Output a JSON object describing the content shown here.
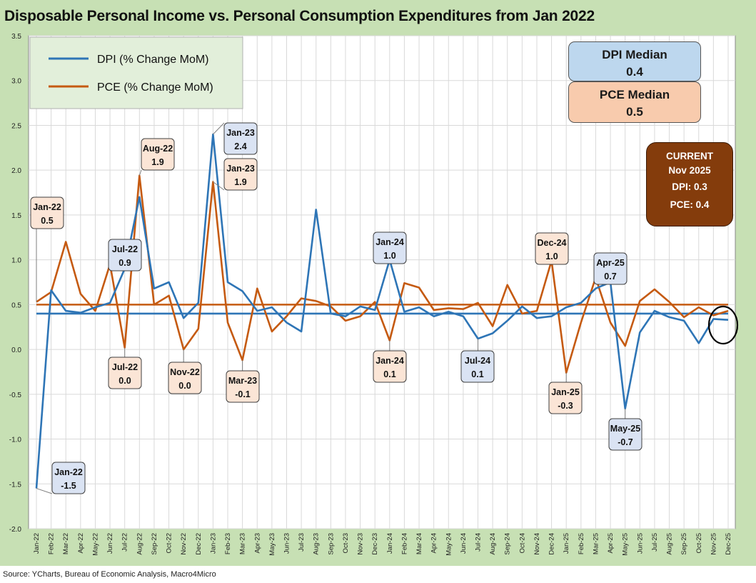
{
  "title": "Disposable Personal Income vs. Personal Consumption Expenditures from Jan 2022",
  "source": "Source: YCharts, Bureau of Economic Analysis, Macro4Micro",
  "median_boxes": {
    "dpi_label": "DPI Median",
    "dpi_value": "0.4",
    "pce_label": "PCE Median",
    "pce_value": "0.5"
  },
  "current": {
    "line1": "CURRENT",
    "line2": "Nov 2025",
    "dpi": "DPI:  0.3",
    "pce": "PCE:  0.4"
  },
  "colors": {
    "dpi": "#2e75b6",
    "pce": "#c55a11",
    "dpi_box": "#dae3f3",
    "pce_box": "#fbe5d6",
    "frame": "#c7e0b4"
  },
  "chart_data": {
    "type": "line",
    "title": "Disposable Personal Income vs. Personal Consumption Expenditures from Jan 2022",
    "ylim": [
      -2.0,
      3.5
    ],
    "yticks": [
      "3.5",
      "3.0",
      "2.5",
      "2.0",
      "1.5",
      "1.0",
      "0.5",
      "0.0",
      "-0.5",
      "-1.0",
      "-1.5",
      "-2.0"
    ],
    "ytick_values": [
      3.5,
      3.0,
      2.5,
      2.0,
      1.5,
      1.0,
      0.5,
      0.0,
      -0.5,
      -1.0,
      -1.5,
      -2.0
    ],
    "grid": true,
    "legend": "top-left",
    "x": [
      "Jan-22",
      "Feb-22",
      "Mar-22",
      "Apr-22",
      "May-22",
      "Jun-22",
      "Jul-22",
      "Aug-22",
      "Sep-22",
      "Oct-22",
      "Nov-22",
      "Dec-22",
      "Jan-23",
      "Feb-23",
      "Mar-23",
      "Apr-23",
      "May-23",
      "Jun-23",
      "Jul-23",
      "Aug-23",
      "Sep-23",
      "Oct-23",
      "Nov-23",
      "Dec-23",
      "Jan-24",
      "Feb-24",
      "Mar-24",
      "Apr-24",
      "May-24",
      "Jun-24",
      "Jul-24",
      "Aug-24",
      "Sep-24",
      "Oct-24",
      "Nov-24",
      "Dec-24",
      "Jan-25",
      "Feb-25",
      "Mar-25",
      "Apr-25",
      "May-25",
      "Jun-25",
      "Jul-25",
      "Aug-25",
      "Sep-25",
      "Oct-25",
      "Nov-25",
      "Dec-25"
    ],
    "series": [
      {
        "name": "DPI (% Change MoM)",
        "color": "#2e75b6",
        "values": [
          -1.55,
          0.66,
          0.43,
          0.41,
          0.47,
          0.52,
          0.9,
          1.7,
          0.68,
          0.75,
          0.35,
          0.52,
          2.4,
          0.75,
          0.65,
          0.43,
          0.47,
          0.3,
          0.2,
          1.56,
          0.4,
          0.37,
          0.48,
          0.44,
          1.0,
          0.42,
          0.47,
          0.37,
          0.42,
          0.37,
          0.12,
          0.18,
          0.32,
          0.48,
          0.35,
          0.37,
          0.47,
          0.52,
          0.68,
          0.75,
          -0.66,
          0.19,
          0.43,
          0.36,
          0.32,
          0.07,
          0.34,
          0.33
        ]
      },
      {
        "name": "PCE (% Change MoM)",
        "color": "#c55a11",
        "values": [
          0.53,
          0.64,
          1.2,
          0.62,
          0.43,
          0.95,
          0.02,
          1.94,
          0.5,
          0.6,
          0.0,
          0.23,
          1.87,
          0.3,
          -0.12,
          0.68,
          0.2,
          0.37,
          0.57,
          0.54,
          0.48,
          0.32,
          0.37,
          0.53,
          0.1,
          0.74,
          0.69,
          0.44,
          0.46,
          0.45,
          0.52,
          0.26,
          0.72,
          0.4,
          0.43,
          0.99,
          -0.26,
          0.3,
          0.8,
          0.3,
          0.04,
          0.54,
          0.67,
          0.53,
          0.36,
          0.47,
          0.38,
          0.43
        ]
      },
      {
        "name": "DPI Median",
        "color": "#2e75b6",
        "constant": 0.4
      },
      {
        "name": "PCE Median",
        "color": "#c55a11",
        "constant": 0.5
      }
    ],
    "annotations": [
      {
        "label": "Jan-22",
        "value": "0.5",
        "series": "PCE",
        "index": 0
      },
      {
        "label": "Jan-22",
        "value": "-1.5",
        "series": "DPI",
        "index": 0
      },
      {
        "label": "Aug-22",
        "value": "1.9",
        "series": "PCE",
        "index": 7
      },
      {
        "label": "Jul-22",
        "value": "0.9",
        "series": "DPI",
        "index": 6
      },
      {
        "label": "Jul-22",
        "value": "0.0",
        "series": "PCE",
        "index": 6
      },
      {
        "label": "Nov-22",
        "value": "0.0",
        "series": "PCE",
        "index": 10
      },
      {
        "label": "Jan-23",
        "value": "2.4",
        "series": "DPI",
        "index": 12
      },
      {
        "label": "Jan-23",
        "value": "1.9",
        "series": "PCE",
        "index": 12
      },
      {
        "label": "Mar-23",
        "value": "-0.1",
        "series": "PCE",
        "index": 14
      },
      {
        "label": "Jan-24",
        "value": "1.0",
        "series": "DPI",
        "index": 24
      },
      {
        "label": "Jan-24",
        "value": "0.1",
        "series": "PCE",
        "index": 24
      },
      {
        "label": "Jul-24",
        "value": "0.1",
        "series": "DPI",
        "index": 30
      },
      {
        "label": "Dec-24",
        "value": "1.0",
        "series": "PCE",
        "index": 35
      },
      {
        "label": "Jan-25",
        "value": "-0.3",
        "series": "PCE",
        "index": 36
      },
      {
        "label": "Apr-25",
        "value": "0.7",
        "series": "DPI",
        "index": 39
      },
      {
        "label": "May-25",
        "value": "-0.7",
        "series": "DPI",
        "index": 40
      }
    ]
  }
}
